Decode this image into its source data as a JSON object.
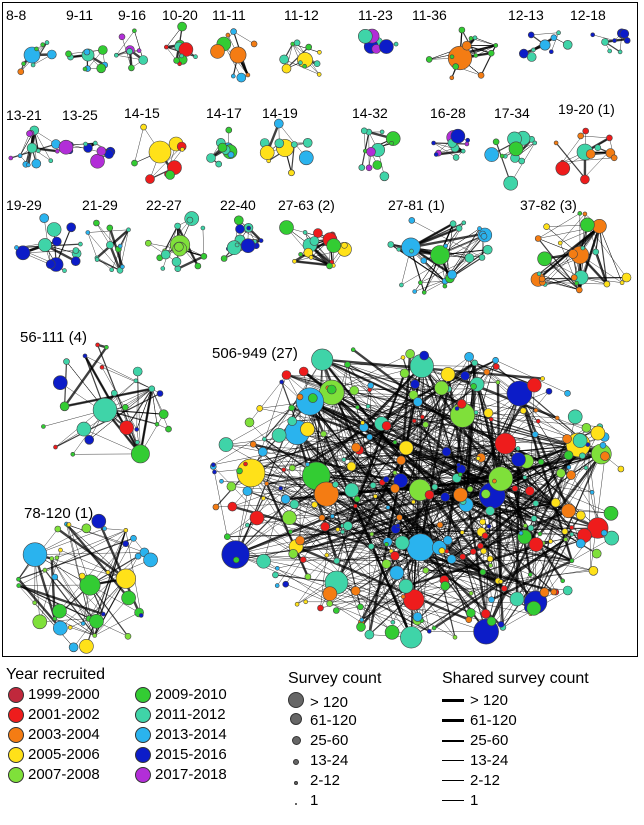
{
  "colors": {
    "y1999_2000": "#c0283c",
    "y2001_2002": "#ee1c1c",
    "y2003_2004": "#f47c13",
    "y2005_2006": "#ffe119",
    "y2007_2008": "#7fe03a",
    "y2009_2010": "#33cc33",
    "y2011_2012": "#3fd4a8",
    "y2013_2014": "#2ab3ee",
    "y2015_2016": "#0c1cc8",
    "y2017_2018": "#b22ed8"
  },
  "groups": [
    {
      "label": "8-8",
      "palette": [
        "y2003_2004",
        "y2009_2010",
        "y2013_2014",
        "y2011_2012"
      ]
    },
    {
      "label": "9-11",
      "palette": [
        "y2009_2010",
        "y2013_2014",
        "y2011_2012"
      ]
    },
    {
      "label": "9-16",
      "palette": [
        "y2011_2012",
        "y2009_2010",
        "y2017_2018"
      ]
    },
    {
      "label": "10-20",
      "palette": [
        "y2001_2002",
        "y2011_2012",
        "y2009_2010"
      ]
    },
    {
      "label": "11-11",
      "palette": [
        "y2003_2004",
        "y2009_2010",
        "y2013_2014"
      ]
    },
    {
      "label": "11-12",
      "palette": [
        "y2009_2010",
        "y2005_2006",
        "y2011_2012"
      ]
    },
    {
      "label": "11-23",
      "palette": [
        "y2017_2018",
        "y2011_2012",
        "y2015_2016"
      ]
    },
    {
      "label": "11-36",
      "palette": [
        "y2003_2004",
        "y2009_2010",
        "y2011_2012"
      ]
    },
    {
      "label": "12-13",
      "palette": [
        "y2011_2012",
        "y2015_2016",
        "y2013_2014"
      ]
    },
    {
      "label": "12-18",
      "palette": [
        "y2013_2014",
        "y2015_2016",
        "y2011_2012"
      ]
    },
    {
      "label": "13-21",
      "palette": [
        "y2011_2012",
        "y2013_2014",
        "y2017_2018"
      ]
    },
    {
      "label": "13-25",
      "palette": [
        "y2015_2016",
        "y2011_2012",
        "y2017_2018"
      ]
    },
    {
      "label": "14-15",
      "palette": [
        "y2005_2006",
        "y2001_2002",
        "y2009_2010"
      ]
    },
    {
      "label": "14-17",
      "palette": [
        "y2011_2012",
        "y2013_2014",
        "y2009_2010"
      ]
    },
    {
      "label": "14-19",
      "palette": [
        "y2005_2006",
        "y2011_2012",
        "y2013_2014"
      ]
    },
    {
      "label": "14-32",
      "palette": [
        "y2009_2010",
        "y2011_2012",
        "y2017_2018"
      ]
    },
    {
      "label": "16-28",
      "palette": [
        "y2015_2016",
        "y2011_2012",
        "y2017_2018"
      ]
    },
    {
      "label": "17-34",
      "palette": [
        "y2011_2012",
        "y2013_2014",
        "y2009_2010"
      ]
    },
    {
      "label": "19-20 (1)",
      "palette": [
        "y2001_2002",
        "y2011_2012",
        "y2003_2004"
      ]
    },
    {
      "label": "19-29",
      "palette": [
        "y2013_2014",
        "y2015_2016",
        "y2011_2012"
      ]
    },
    {
      "label": "21-29",
      "palette": [
        "y2011_2012",
        "y2009_2010",
        "y2013_2014"
      ]
    },
    {
      "label": "22-27",
      "palette": [
        "y2007_2008",
        "y2009_2010",
        "y2011_2012"
      ]
    },
    {
      "label": "22-40",
      "palette": [
        "y2015_2016",
        "y2009_2010",
        "y2011_2012"
      ]
    },
    {
      "label": "27-63 (2)",
      "palette": [
        "y2001_2002",
        "y2009_2010",
        "y2011_2012",
        "y2005_2006"
      ]
    },
    {
      "label": "27-81 (1)",
      "palette": [
        "y2013_2014",
        "y2011_2012",
        "y2009_2010"
      ]
    },
    {
      "label": "37-82 (3)",
      "palette": [
        "y2003_2004",
        "y2005_2006",
        "y2009_2010",
        "y2011_2012"
      ]
    },
    {
      "label": "56-111 (4)",
      "palette": [
        "y2009_2010",
        "y2011_2012",
        "y2015_2016",
        "y2001_2002"
      ]
    },
    {
      "label": "78-120 (1)",
      "palette": [
        "y2007_2008",
        "y2009_2010",
        "y2013_2014",
        "y2015_2016",
        "y2005_2006"
      ]
    },
    {
      "label": "506-949 (27)",
      "palette": [
        "y2009_2010",
        "y2001_2002",
        "y2005_2006",
        "y2003_2004",
        "y2011_2012",
        "y2013_2014",
        "y2015_2016",
        "y2007_2008"
      ]
    }
  ],
  "legend": {
    "year": {
      "title": "Year recruited",
      "items": [
        {
          "label": "1999-2000",
          "color": "#c0283c"
        },
        {
          "label": "2001-2002",
          "color": "#ee1c1c"
        },
        {
          "label": "2003-2004",
          "color": "#f47c13"
        },
        {
          "label": "2005-2006",
          "color": "#ffe119"
        },
        {
          "label": "2007-2008",
          "color": "#7fe03a"
        },
        {
          "label": "2009-2010",
          "color": "#33cc33"
        },
        {
          "label": "2011-2012",
          "color": "#3fd4a8"
        },
        {
          "label": "2013-2014",
          "color": "#2ab3ee"
        },
        {
          "label": "2015-2016",
          "color": "#0c1cc8"
        },
        {
          "label": "2017-2018",
          "color": "#b22ed8"
        }
      ]
    },
    "survey": {
      "title": "Survey count",
      "items": [
        {
          "label": "> 120"
        },
        {
          "label": "61-120"
        },
        {
          "label": "25-60"
        },
        {
          "label": "13-24"
        },
        {
          "label": "2-12"
        },
        {
          "label": "1"
        }
      ]
    },
    "shared": {
      "title": "Shared survey count",
      "items": [
        {
          "label": "> 120"
        },
        {
          "label": "61-120"
        },
        {
          "label": "25-60"
        },
        {
          "label": "13-24"
        },
        {
          "label": "2-12"
        },
        {
          "label": "1"
        }
      ]
    }
  }
}
